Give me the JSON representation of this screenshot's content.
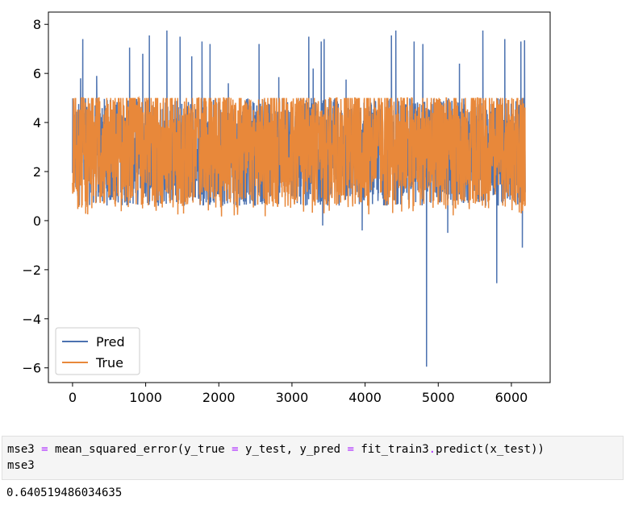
{
  "chart_data": {
    "type": "line",
    "x_ticks": [
      "0",
      "1000",
      "2000",
      "3000",
      "4000",
      "5000",
      "6000"
    ],
    "y_ticks": [
      "8",
      "6",
      "4",
      "2",
      "0",
      "−2",
      "−4",
      "−6"
    ],
    "xlim": [
      -330,
      6530
    ],
    "ylim": [
      -6.6,
      8.5
    ],
    "n_points": 6192,
    "legend_position": "lower-left",
    "series": [
      {
        "name": "Pred",
        "color": "#4c72b0",
        "typical_range": [
          0.6,
          5.0
        ],
        "spikes": [
          [
            140,
            7.4
          ],
          [
            110,
            5.8
          ],
          [
            330,
            5.9
          ],
          [
            780,
            7.05
          ],
          [
            960,
            6.8
          ],
          [
            1050,
            7.55
          ],
          [
            1290,
            7.75
          ],
          [
            1470,
            7.5
          ],
          [
            1630,
            6.7
          ],
          [
            1770,
            7.3
          ],
          [
            1880,
            7.2
          ],
          [
            2130,
            5.6
          ],
          [
            2550,
            7.2
          ],
          [
            2820,
            5.85
          ],
          [
            3230,
            7.5
          ],
          [
            3290,
            6.2
          ],
          [
            3400,
            7.3
          ],
          [
            3440,
            7.4
          ],
          [
            3740,
            5.75
          ],
          [
            4360,
            7.55
          ],
          [
            4420,
            7.75
          ],
          [
            4670,
            7.3
          ],
          [
            4790,
            7.2
          ],
          [
            5290,
            6.4
          ],
          [
            5610,
            7.75
          ],
          [
            5910,
            7.4
          ],
          [
            6130,
            7.3
          ],
          [
            6180,
            7.35
          ]
        ],
        "dips": [
          [
            3420,
            -0.2
          ],
          [
            3960,
            -0.4
          ],
          [
            4840,
            -5.95
          ],
          [
            5130,
            -0.5
          ],
          [
            5800,
            -2.55
          ],
          [
            6150,
            -1.1
          ]
        ]
      },
      {
        "name": "True",
        "color": "#e8883a",
        "typical_range": [
          0.5,
          5.0
        ],
        "min": 0.15,
        "max": 5.0
      }
    ]
  },
  "code": {
    "line1_tokens": [
      {
        "text": "mse3 ",
        "cls": ""
      },
      {
        "text": "=",
        "cls": "op"
      },
      {
        "text": " mean_squared_error(y_true ",
        "cls": ""
      },
      {
        "text": "=",
        "cls": "op"
      },
      {
        "text": " y_test, y_pred ",
        "cls": ""
      },
      {
        "text": "=",
        "cls": "op"
      },
      {
        "text": " fit_train3",
        "cls": ""
      },
      {
        "text": ".",
        "cls": "op"
      },
      {
        "text": "predict(x_test))",
        "cls": ""
      }
    ],
    "line2": "mse3"
  },
  "output": {
    "value": "0.640519486034635"
  }
}
